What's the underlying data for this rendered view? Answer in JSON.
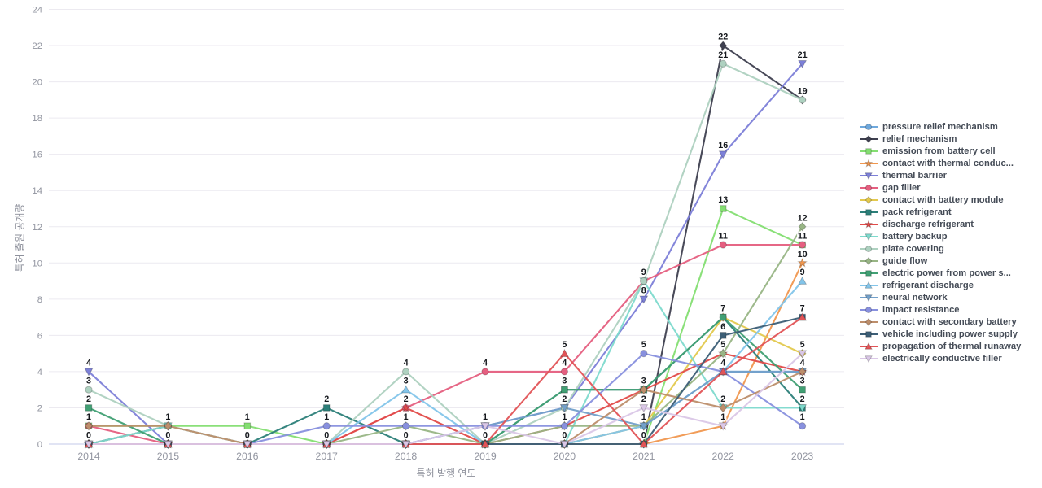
{
  "page": {
    "background": "#ffffff"
  },
  "axes": {
    "x_tick_color": "#9295a0",
    "y_tick_color": "#9295a0",
    "grid_color": "#eceaf0",
    "axis_line_color": "#c3c9e8",
    "data_label_color": "#15181d"
  },
  "chart_data": {
    "type": "line",
    "title": "",
    "xlabel": "특허 발행 연도",
    "ylabel": "특허 출원 공개량",
    "x": [
      "2014",
      "2015",
      "2016",
      "2017",
      "2018",
      "2019",
      "2020",
      "2021",
      "2022",
      "2023"
    ],
    "y_ticks": [
      0,
      2,
      4,
      6,
      8,
      10,
      12,
      14,
      16,
      18,
      20,
      22,
      24
    ],
    "ylim": [
      0,
      24
    ],
    "grid": true,
    "legend_position": "right",
    "series": [
      {
        "name": "pressure relief mechanism",
        "marker": "circle",
        "color": "#6fa8dc",
        "values": [
          0,
          0,
          0,
          0,
          0,
          0,
          0,
          1,
          4,
          4
        ]
      },
      {
        "name": "relief mechanism",
        "marker": "diamond",
        "color": "#3f4050",
        "values": [
          0,
          1,
          0,
          0,
          0,
          0,
          0,
          0,
          22,
          19
        ]
      },
      {
        "name": "emission from battery cell",
        "marker": "square",
        "color": "#84de72",
        "values": [
          1,
          1,
          1,
          0,
          0,
          0,
          0,
          0,
          13,
          11
        ]
      },
      {
        "name": "contact with thermal conduc...",
        "marker": "star",
        "color": "#f0974f",
        "values": [
          0,
          0,
          0,
          0,
          0,
          0,
          0,
          0,
          1,
          10
        ]
      },
      {
        "name": "thermal barrier",
        "marker": "triangle-down",
        "color": "#7d80d8",
        "values": [
          4,
          0,
          0,
          0,
          0,
          1,
          2,
          8,
          16,
          21
        ]
      },
      {
        "name": "gap filler",
        "marker": "circle",
        "color": "#e55f80",
        "values": [
          1,
          0,
          0,
          0,
          2,
          4,
          4,
          9,
          11,
          11
        ]
      },
      {
        "name": "contact with battery module",
        "marker": "diamond",
        "color": "#e3c94e",
        "values": [
          0,
          0,
          0,
          0,
          0,
          0,
          0,
          1,
          7,
          5
        ]
      },
      {
        "name": "pack refrigerant",
        "marker": "square",
        "color": "#2c7f79",
        "values": [
          0,
          0,
          0,
          2,
          0,
          0,
          3,
          3,
          7,
          2
        ]
      },
      {
        "name": "discharge refrigerant",
        "marker": "star",
        "color": "#e14b49",
        "values": [
          0,
          0,
          0,
          0,
          2,
          0,
          1,
          3,
          5,
          4
        ]
      },
      {
        "name": "battery backup",
        "marker": "triangle-down",
        "color": "#7edacd",
        "values": [
          0,
          1,
          0,
          0,
          0,
          0,
          0,
          9,
          2,
          2
        ]
      },
      {
        "name": "plate covering",
        "marker": "circle",
        "color": "#aed1c0",
        "values": [
          3,
          1,
          0,
          0,
          4,
          0,
          2,
          9,
          21,
          19
        ]
      },
      {
        "name": "guide flow",
        "marker": "diamond",
        "color": "#98b585",
        "values": [
          0,
          0,
          0,
          0,
          1,
          0,
          1,
          1,
          5,
          12
        ]
      },
      {
        "name": "electric power from power s...",
        "marker": "square",
        "color": "#41a074",
        "values": [
          2,
          0,
          0,
          0,
          0,
          0,
          3,
          3,
          7,
          3
        ]
      },
      {
        "name": "refrigerant discharge",
        "marker": "triangle-up",
        "color": "#83c5ea",
        "values": [
          0,
          0,
          0,
          0,
          3,
          0,
          0,
          1,
          4,
          9
        ]
      },
      {
        "name": "neural network",
        "marker": "triangle-down",
        "color": "#73a0ca",
        "values": [
          0,
          0,
          0,
          0,
          0,
          1,
          2,
          1,
          4,
          4
        ]
      },
      {
        "name": "impact resistance",
        "marker": "circle",
        "color": "#8890de",
        "values": [
          0,
          0,
          0,
          1,
          1,
          1,
          1,
          5,
          4,
          1
        ]
      },
      {
        "name": "contact with secondary battery",
        "marker": "diamond",
        "color": "#bd8e6b",
        "values": [
          1,
          1,
          0,
          0,
          0,
          0,
          0,
          3,
          2,
          4
        ]
      },
      {
        "name": "vehicle including power supply",
        "marker": "square",
        "color": "#3c5e76",
        "values": [
          0,
          0,
          0,
          0,
          0,
          0,
          0,
          0,
          6,
          7
        ]
      },
      {
        "name": "propagation of thermal runaway",
        "marker": "triangle-up",
        "color": "#e15457",
        "values": [
          0,
          0,
          0,
          0,
          0,
          0,
          5,
          0,
          4,
          7
        ]
      },
      {
        "name": "electrically conductive filler",
        "marker": "triangle-down",
        "color": "#dac7e7",
        "values": [
          0,
          0,
          0,
          0,
          0,
          1,
          0,
          2,
          1,
          5
        ]
      }
    ]
  }
}
